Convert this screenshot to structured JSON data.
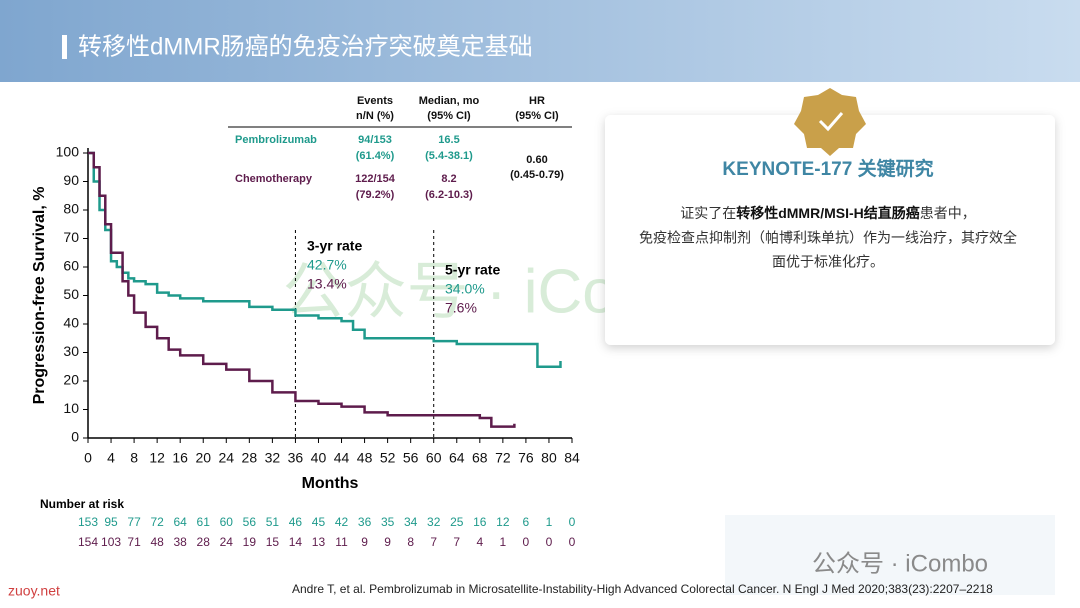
{
  "header": {
    "title": "转移性dMMR肠癌的免疫治疗突破奠定基础"
  },
  "chart_data": {
    "type": "step-line",
    "xlabel": "Months",
    "ylabel": "Progression-free Survival, %",
    "xlim": [
      0,
      84
    ],
    "xticks": [
      0,
      4,
      8,
      12,
      16,
      20,
      24,
      28,
      32,
      36,
      40,
      44,
      48,
      52,
      56,
      60,
      64,
      68,
      72,
      76,
      80,
      84
    ],
    "ylim": [
      0,
      100
    ],
    "yticks": [
      0,
      10,
      20,
      30,
      40,
      50,
      60,
      70,
      80,
      90,
      100
    ],
    "series": [
      {
        "name": "Pembrolizumab",
        "color": "#1f9a8c",
        "x": [
          0,
          1,
          2,
          3,
          4,
          5,
          6,
          7,
          8,
          10,
          12,
          14,
          16,
          20,
          24,
          28,
          32,
          36,
          40,
          44,
          46,
          48,
          56,
          60,
          64,
          76,
          78,
          81,
          82
        ],
        "values": [
          100,
          90,
          80,
          73,
          62,
          60,
          58,
          56,
          55,
          54,
          51,
          50,
          49,
          48,
          48,
          46,
          45,
          43,
          42,
          41,
          38,
          35,
          35,
          34,
          33,
          33,
          25,
          25,
          27
        ]
      },
      {
        "name": "Chemotherapy",
        "color": "#5e1c4c",
        "x": [
          0,
          1,
          2,
          3,
          4,
          6,
          7,
          8,
          10,
          12,
          14,
          16,
          20,
          24,
          28,
          32,
          36,
          40,
          44,
          48,
          52,
          60,
          68,
          70,
          74
        ],
        "values": [
          100,
          95,
          85,
          75,
          65,
          55,
          50,
          44,
          39,
          35,
          31,
          29,
          26,
          24,
          20,
          16,
          13,
          12,
          11,
          9,
          8,
          8,
          7,
          4,
          5
        ]
      }
    ],
    "vlines": [
      36,
      60
    ],
    "annotations": [
      {
        "title": "3-yr rate",
        "rates": [
          "42.7%",
          "13.4%"
        ]
      },
      {
        "title": "5-yr rate",
        "rates": [
          "34.0%",
          "7.6%"
        ]
      }
    ],
    "inset_table": {
      "headers": [
        [
          "Events",
          "n/N (%)"
        ],
        [
          "Median, mo",
          "(95% CI)"
        ],
        [
          "HR",
          "(95% CI)"
        ]
      ],
      "rows": [
        {
          "label": "Pembrolizumab",
          "events": [
            "94/153",
            "(61.4%)"
          ],
          "median": [
            "16.5",
            "(5.4-38.1)"
          ]
        },
        {
          "label": "Chemotherapy",
          "events": [
            "122/154",
            "(79.2%)"
          ],
          "median": [
            "8.2",
            "(6.2-10.3)"
          ]
        }
      ],
      "hr": [
        "0.60",
        "(0.45-0.79)"
      ]
    },
    "risk_title": "Number at risk",
    "risk": [
      [
        153,
        95,
        77,
        72,
        64,
        61,
        60,
        56,
        51,
        46,
        45,
        42,
        36,
        35,
        34,
        32,
        25,
        16,
        12,
        6,
        1,
        0
      ],
      [
        154,
        103,
        71,
        48,
        38,
        28,
        24,
        19,
        15,
        14,
        13,
        11,
        9,
        9,
        8,
        7,
        7,
        4,
        1,
        0,
        0,
        0
      ]
    ]
  },
  "card": {
    "title": "KEYNOTE-177 关键研究",
    "line1": [
      "证实了在",
      "转移性dMMR/MSI-H结直肠癌",
      "患者中，"
    ],
    "line2": "免疫检查点抑制剂（帕博利珠单抗）作为一线治疗，其疗效全",
    "line3": "面优于标准化疗。"
  },
  "watermark": "公众号 · iCombo",
  "watermark2": "公众号 · iCombo",
  "site": "zuoy.net",
  "citation": "Andre T, et al. Pembrolizumab in Microsatellite-Instability-High Advanced Colorectal Cancer. N Engl J Med 2020;383(23):2207–2218"
}
